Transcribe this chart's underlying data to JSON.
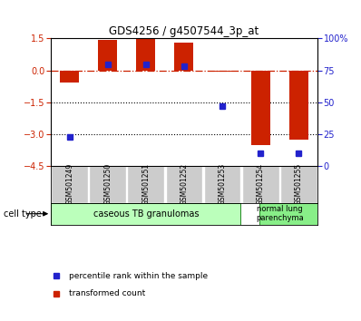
{
  "title": "GDS4256 / g4507544_3p_at",
  "samples": [
    "GSM501249",
    "GSM501250",
    "GSM501251",
    "GSM501252",
    "GSM501253",
    "GSM501254",
    "GSM501255"
  ],
  "transformed_count": [
    -0.55,
    1.45,
    1.5,
    1.3,
    -0.05,
    -3.5,
    -3.25
  ],
  "percentile_rank": [
    23,
    80,
    80,
    78,
    47,
    10,
    10
  ],
  "group1_label": "caseous TB granulomas",
  "group2_label": "normal lung\nparenchyma",
  "cell_type_label": "cell type",
  "legend1_label": "transformed count",
  "legend2_label": "percentile rank within the sample",
  "bar_color": "#cc2200",
  "dot_color": "#2222cc",
  "ylim_left": [
    -4.5,
    1.5
  ],
  "ylim_right": [
    0,
    100
  ],
  "yticks_left": [
    1.5,
    0,
    -1.5,
    -3,
    -4.5
  ],
  "yticks_right": [
    100,
    75,
    50,
    25,
    0
  ],
  "dotted_lines": [
    -1.5,
    -3
  ],
  "background_color": "#ffffff",
  "group1_color": "#bbffbb",
  "group2_color": "#88ee88",
  "sample_bg": "#cccccc",
  "bar_width": 0.5,
  "group1_count": 5,
  "group2_count": 2
}
